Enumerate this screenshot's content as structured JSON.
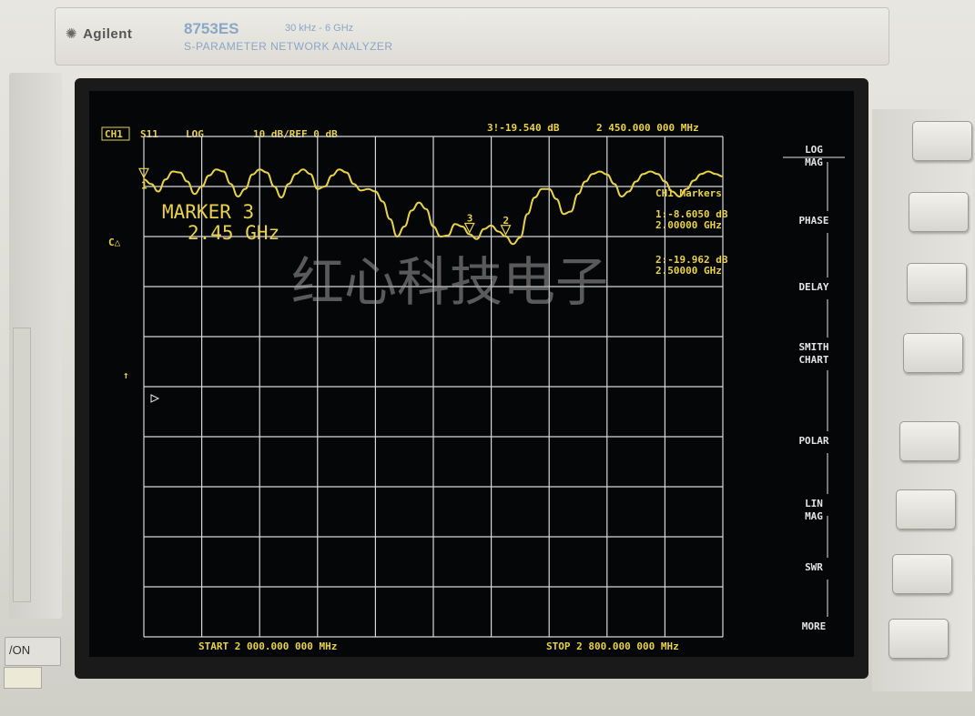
{
  "brand": {
    "logo": "Agilent",
    "model": "8753ES",
    "freq_range": "30 kHz - 6 GHz",
    "product_name": "S-PARAMETER NETWORK ANALYZER"
  },
  "power": {
    "label": "/ON"
  },
  "header": {
    "channel": "CH1",
    "param": "S11",
    "format": "LOG",
    "scale": "10 dB/REF 0 dB",
    "active_marker": "3!-19.540 dB",
    "active_marker_freq": "2 450.000 000 MHz"
  },
  "marker_display": {
    "line1": "MARKER 3",
    "line2": "2.45 GHz"
  },
  "ca_label": "C△",
  "marker_table": {
    "title": "CH1 Markers",
    "entries": [
      {
        "value": "1:-8.6050 dB",
        "freq": "2.00000 GHz"
      },
      {
        "value": "2:-19.962 dB",
        "freq": "2.50000 GHz"
      }
    ]
  },
  "watermark": "红心科技电子",
  "footer": {
    "start": "START 2 000.000 000 MHz",
    "stop": "STOP 2 800.000 000 MHz"
  },
  "softkeys": [
    "LOG MAG",
    "PHASE",
    "DELAY",
    "SMITH CHART",
    "POLAR",
    "LIN MAG",
    "SWR",
    "MORE"
  ],
  "colors": {
    "trace": "#e8d24a",
    "grid": "#d8d8d8",
    "screen_bg": "#050608"
  },
  "chart_data": {
    "type": "line",
    "xlabel": "",
    "ylabel": "",
    "xlim": [
      2000,
      2800
    ],
    "ylim": [
      -100,
      0
    ],
    "grid": true,
    "series": [
      {
        "x": [
          2000,
          2010,
          2020,
          2030,
          2040,
          2050,
          2060,
          2070,
          2080,
          2090,
          2100,
          2110,
          2120,
          2130,
          2140,
          2150,
          2160,
          2170,
          2180,
          2190,
          2200,
          2210,
          2220,
          2230,
          2240,
          2250,
          2260,
          2270,
          2280,
          2290,
          2300,
          2310,
          2320,
          2330,
          2340,
          2350,
          2360,
          2370,
          2380,
          2390,
          2400,
          2410,
          2420,
          2430,
          2440,
          2450,
          2460,
          2470,
          2480,
          2490,
          2500,
          2510,
          2520,
          2530,
          2540,
          2550,
          2560,
          2570,
          2580,
          2590,
          2600,
          2610,
          2620,
          2630,
          2640,
          2650,
          2660,
          2670,
          2680,
          2690,
          2700,
          2710,
          2720,
          2730,
          2740,
          2750,
          2760,
          2770,
          2780,
          2790,
          2800
        ],
        "y": [
          -8.6,
          -9.5,
          -11,
          -8.6,
          -7,
          -7.2,
          -9,
          -11.5,
          -10,
          -7.8,
          -6.6,
          -7,
          -9.5,
          -12,
          -10.5,
          -7.6,
          -6.6,
          -7.2,
          -10,
          -12.2,
          -9.5,
          -7.5,
          -6.6,
          -7.5,
          -10.5,
          -10,
          -7.8,
          -6.6,
          -7.2,
          -9.5,
          -10.8,
          -10.5,
          -11,
          -13,
          -16.5,
          -20,
          -18,
          -14.8,
          -13.2,
          -14.5,
          -18,
          -20,
          -19.8,
          -17.5,
          -18,
          -19.54,
          -20.5,
          -18.5,
          -17.8,
          -19,
          -19.96,
          -21.5,
          -20.2,
          -15.5,
          -12.2,
          -10.5,
          -10.5,
          -12.5,
          -15.5,
          -15,
          -11.5,
          -9,
          -7.5,
          -7,
          -7.6,
          -9.5,
          -12,
          -11,
          -9,
          -7.5,
          -7,
          -7.5,
          -9,
          -11,
          -12,
          -10.5,
          -8.8,
          -7.5,
          -7,
          -7.5,
          -8
        ]
      }
    ]
  }
}
